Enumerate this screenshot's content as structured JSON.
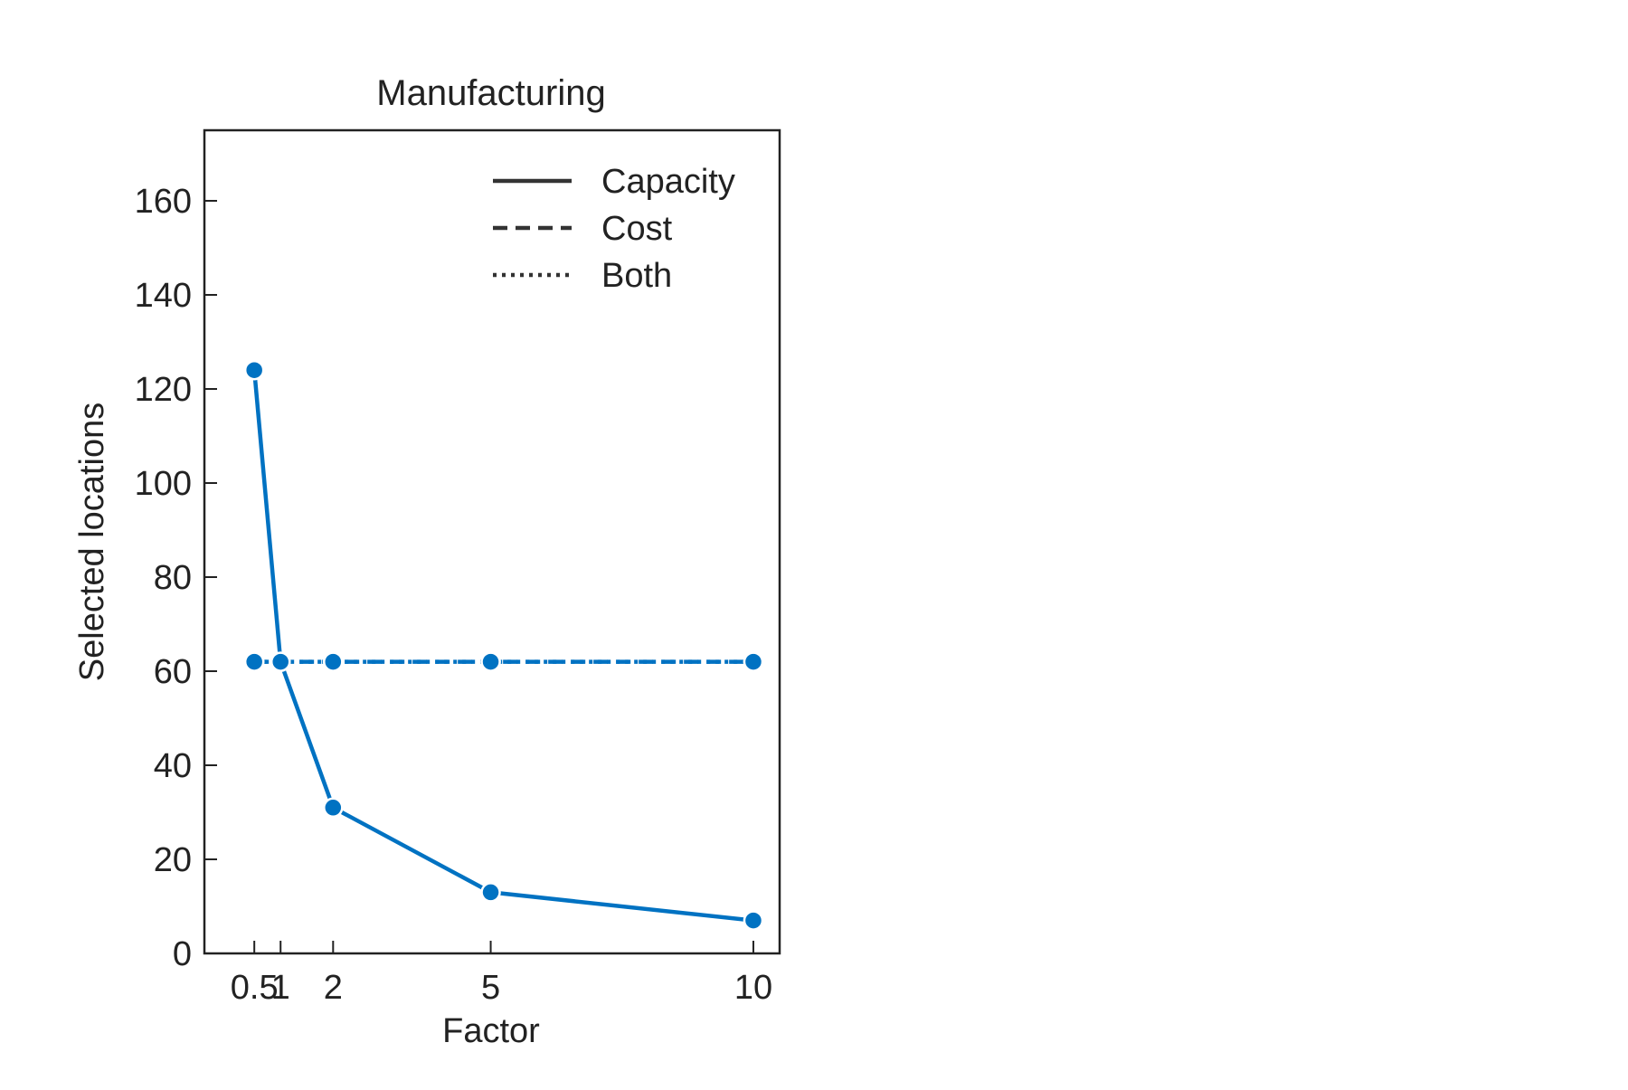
{
  "chart_data": {
    "type": "line",
    "title": "Manufacturing",
    "xlabel": "Factor",
    "ylabel": "Selected locations",
    "x": [
      0.5,
      1,
      2,
      5,
      10
    ],
    "x_tick_labels": [
      "0.5",
      "1",
      "2",
      "5",
      "10"
    ],
    "xlim": [
      -0.45,
      10.5
    ],
    "ylim": [
      0,
      175
    ],
    "y_ticks": [
      0,
      20,
      40,
      60,
      80,
      100,
      120,
      140,
      160
    ],
    "y_tick_labels": [
      "0",
      "20",
      "40",
      "60",
      "80",
      "100",
      "120",
      "140",
      "160"
    ],
    "grid": false,
    "legend_position": "top-right",
    "color": "#0072C2",
    "series": [
      {
        "name": "Capacity",
        "style": "solid",
        "values": [
          124,
          62,
          31,
          13,
          7
        ]
      },
      {
        "name": "Cost",
        "style": "dashed",
        "values": [
          62,
          62,
          62,
          62,
          62
        ]
      },
      {
        "name": "Both",
        "style": "dotted",
        "values": [
          62,
          62,
          62,
          62,
          62
        ]
      }
    ]
  }
}
